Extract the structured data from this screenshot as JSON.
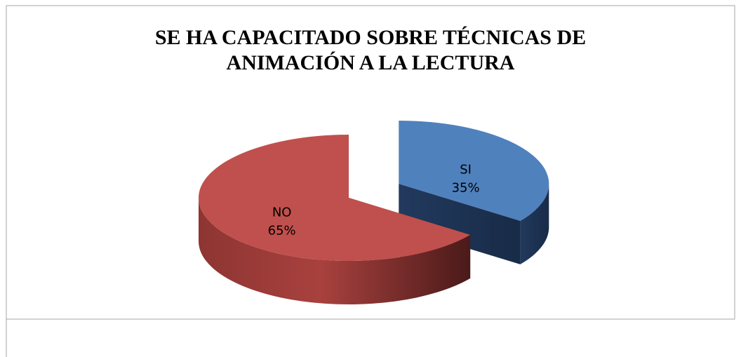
{
  "chart_data": {
    "type": "pie",
    "title": "SE HA CAPACITADO SOBRE TÉCNICAS DE ANIMACIÓN A LA LECTURA",
    "categories": [
      "SI",
      "NO"
    ],
    "values": [
      35,
      65
    ],
    "value_labels": [
      "35%",
      "65%"
    ],
    "colors": [
      "#4f81bd",
      "#c0504d"
    ],
    "exploded": [
      "SI"
    ]
  }
}
